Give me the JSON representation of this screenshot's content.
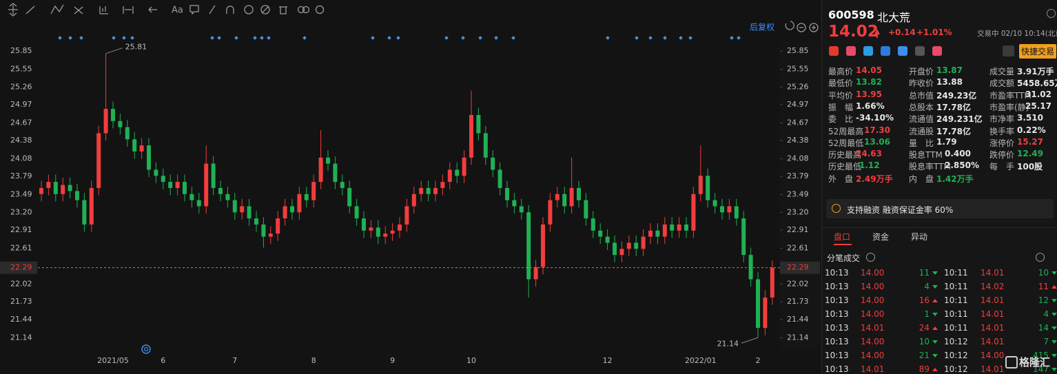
{
  "toolbar": {
    "font_tool": "Aa",
    "adjust": "后复权"
  },
  "chart_data": {
    "type": "candlestick",
    "categories": [
      null,
      null,
      null,
      null,
      null,
      null,
      null,
      null,
      null,
      null,
      "2021/05",
      null,
      null,
      null,
      null,
      null,
      null,
      "6",
      null,
      null,
      null,
      null,
      null,
      null,
      null,
      null,
      null,
      "7",
      null,
      null,
      null,
      null,
      null,
      null,
      null,
      null,
      null,
      null,
      "8",
      null,
      null,
      null,
      null,
      null,
      null,
      null,
      null,
      null,
      null,
      "9",
      null,
      null,
      null,
      null,
      null,
      null,
      null,
      null,
      null,
      null,
      "10",
      null,
      null,
      null,
      null,
      null,
      null,
      null,
      null,
      null,
      null,
      null,
      null,
      null,
      null,
      null,
      null,
      null,
      null,
      "12",
      null,
      null,
      null,
      null,
      null,
      null,
      null,
      null,
      null,
      null,
      null,
      null,
      "2022/01",
      null,
      null,
      null,
      null,
      null,
      null,
      null,
      "2",
      null,
      null
    ],
    "open": [
      23.5,
      23.6,
      23.7,
      23.5,
      23.65,
      23.55,
      23.4,
      23,
      23.6,
      24.5,
      24.9,
      24.7,
      24.6,
      24.4,
      24.2,
      24.3,
      23.9,
      23.8,
      23.7,
      23.6,
      23.7,
      23.5,
      23.4,
      23.3,
      24,
      23.6,
      23.5,
      23.4,
      23.2,
      23.3,
      23.1,
      23,
      22.8,
      22.85,
      23.1,
      23.3,
      23.2,
      23.5,
      23.4,
      23.7,
      24.1,
      24,
      23.7,
      23.6,
      23.3,
      23.1,
      22.9,
      22.95,
      22.8,
      22.85,
      22.9,
      23,
      23.3,
      23.5,
      23.6,
      23.5,
      23.6,
      23.7,
      23.9,
      23.8,
      24.1,
      24.8,
      24.5,
      24.1,
      23.9,
      23.6,
      23.4,
      23.3,
      23.2,
      22.1,
      22.3,
      23,
      23.4,
      23.5,
      23.3,
      23.6,
      23.4,
      23.1,
      22.9,
      22.8,
      22.7,
      22.5,
      22.6,
      22.7,
      22.6,
      22.8,
      22.9,
      22.8,
      23,
      22.9,
      23,
      22.9,
      23.5,
      23.8,
      23.4,
      23.3,
      23.2,
      23.3,
      23.1,
      22.5,
      22.1,
      21.3,
      21.8
    ],
    "high": [
      23.72,
      23.82,
      23.82,
      23.77,
      23.77,
      23.67,
      23.52,
      23.72,
      24.62,
      25.81,
      25.02,
      24.82,
      24.72,
      24.52,
      24.42,
      24.42,
      24.02,
      23.92,
      23.82,
      23.82,
      23.82,
      23.62,
      23.52,
      24.3,
      24.12,
      23.72,
      23.62,
      23.52,
      23.42,
      23.42,
      23.22,
      23.12,
      22.97,
      23.22,
      23.42,
      23.42,
      23.62,
      23.62,
      23.82,
      24.55,
      24.22,
      24.12,
      23.82,
      23.72,
      23.42,
      23.22,
      23.07,
      23.07,
      22.97,
      23.02,
      23.12,
      23.42,
      23.62,
      23.72,
      23.72,
      23.72,
      23.82,
      24.02,
      24.02,
      24.22,
      25.2,
      24.92,
      24.62,
      24.22,
      24.02,
      23.72,
      23.52,
      23.42,
      23.32,
      22.42,
      23.12,
      23.52,
      23.62,
      23.62,
      24.1,
      23.72,
      23.52,
      23.22,
      23.02,
      22.92,
      22.82,
      22.72,
      22.82,
      22.82,
      22.92,
      23.02,
      23.02,
      23.12,
      23.12,
      23.12,
      23.12,
      23.62,
      24.3,
      23.92,
      23.52,
      23.42,
      23.42,
      23.42,
      23.22,
      22.62,
      22.22,
      21.92,
      22.41
    ],
    "low": [
      23.38,
      23.48,
      23.38,
      23.38,
      23.43,
      23.28,
      22.88,
      22.88,
      23.48,
      24.38,
      24.58,
      24.48,
      24.28,
      24.08,
      24.08,
      23.78,
      23.68,
      23.58,
      23.48,
      23.48,
      23.38,
      23.28,
      23.18,
      23.18,
      23.48,
      23.38,
      23.28,
      23.08,
      23.08,
      22.98,
      22.88,
      22.62,
      22.68,
      22.73,
      22.98,
      23.08,
      23.08,
      23.28,
      23.28,
      23.58,
      23.88,
      23.58,
      23.48,
      23.18,
      22.98,
      22.78,
      22.78,
      22.68,
      22.68,
      22.73,
      22.78,
      22.88,
      23.18,
      23.38,
      23.38,
      23.38,
      23.48,
      23.58,
      23.68,
      23.68,
      23.98,
      24.38,
      23.98,
      23.78,
      23.48,
      23.28,
      23.18,
      23.08,
      21.8,
      21.98,
      22.18,
      22.88,
      23.28,
      23.18,
      23.18,
      23.28,
      22.98,
      22.78,
      22.68,
      22.58,
      22.38,
      22.38,
      22.48,
      22.48,
      22.48,
      22.68,
      22.68,
      22.68,
      22.78,
      22.78,
      22.78,
      22.78,
      23.38,
      23.28,
      23.18,
      23.08,
      23.08,
      22.98,
      22.38,
      21.98,
      21.14,
      21.18,
      21.68
    ],
    "close": [
      23.6,
      23.7,
      23.5,
      23.65,
      23.55,
      23.4,
      23,
      23.6,
      24.5,
      24.9,
      24.7,
      24.6,
      24.4,
      24.2,
      24.3,
      23.9,
      23.8,
      23.7,
      23.6,
      23.7,
      23.5,
      23.4,
      23.3,
      24,
      23.6,
      23.5,
      23.4,
      23.2,
      23.3,
      23.1,
      23,
      22.8,
      22.85,
      23.1,
      23.3,
      23.2,
      23.5,
      23.4,
      23.7,
      24.1,
      24,
      23.7,
      23.6,
      23.3,
      23.1,
      22.9,
      22.95,
      22.8,
      22.85,
      22.9,
      23,
      23.3,
      23.5,
      23.6,
      23.5,
      23.6,
      23.7,
      23.9,
      23.8,
      24.1,
      24.8,
      24.5,
      24.1,
      23.9,
      23.6,
      23.4,
      23.3,
      23.2,
      22.1,
      22.3,
      23,
      23.4,
      23.5,
      23.3,
      23.6,
      23.4,
      23.1,
      22.9,
      22.8,
      22.7,
      22.5,
      22.6,
      22.7,
      22.6,
      22.8,
      22.9,
      22.8,
      23,
      22.9,
      23,
      22.9,
      23.5,
      23.8,
      23.4,
      23.3,
      23.2,
      23.3,
      23.1,
      22.5,
      22.1,
      21.3,
      21.8,
      22.29
    ],
    "up_color": "#f23d3d",
    "down_color": "#1fb155",
    "ylim": [
      20.86,
      26.18
    ],
    "yticks": [
      25.85,
      25.55,
      25.26,
      24.97,
      24.67,
      24.38,
      24.08,
      23.79,
      23.49,
      {
        "value": 23.2,
        "label": "23.20"
      },
      22.91,
      22.61,
      22.02,
      21.73,
      21.44,
      21.14
    ],
    "grid": false
  },
  "quote": {
    "code": "600598",
    "name": "北大荒",
    "price": "14.02",
    "change": "+0.14",
    "percent": "+1.01%",
    "status": "交易中 02/10 10:14(北京",
    "trade_button": "快捷交易"
  },
  "stats": [
    [
      {
        "label": "最高价",
        "value": "14.05",
        "color": "#f23d3d"
      },
      {
        "label": "开盘价",
        "value": "13.87",
        "color": "#1fb155"
      },
      {
        "label": "成交量",
        "value": "3.91万手",
        "color": "#e6e6e6"
      }
    ],
    [
      {
        "label": "最低价",
        "value": "13.82",
        "color": "#1fb155"
      },
      {
        "label": "昨收价",
        "value": "13.88",
        "color": "#e6e6e6"
      },
      {
        "label": "成交额",
        "value": "5458.65万",
        "color": "#e6e6e6"
      }
    ],
    [
      {
        "label": "平均价",
        "value": "13.95",
        "color": "#f23d3d"
      },
      {
        "label": "总市值",
        "value": "249.23亿",
        "color": "#e6e6e6"
      },
      {
        "label": "市盈率TTM",
        "value": "31.02",
        "color": "#e6e6e6"
      }
    ],
    [
      {
        "label": "振　幅",
        "value": "1.66%",
        "color": "#e6e6e6"
      },
      {
        "label": "总股本",
        "value": "17.78亿",
        "color": "#e6e6e6"
      },
      {
        "label": "市盈率(静)",
        "value": "25.17",
        "color": "#e6e6e6"
      }
    ],
    [
      {
        "label": "委　比",
        "value": "-34.10%",
        "color": "#e6e6e6"
      },
      {
        "label": "流通值",
        "value": "249.231亿",
        "color": "#e6e6e6"
      },
      {
        "label": "市净率",
        "value": "3.510",
        "color": "#e6e6e6"
      }
    ],
    [
      {
        "label": "52周最高",
        "value": "17.30",
        "color": "#f23d3d"
      },
      {
        "label": "流通股",
        "value": "17.78亿",
        "color": "#e6e6e6"
      },
      {
        "label": "换手率",
        "value": "0.22%",
        "color": "#e6e6e6"
      }
    ],
    [
      {
        "label": "52周最低",
        "value": "13.06",
        "color": "#1fb155"
      },
      {
        "label": "量　比",
        "value": "1.79",
        "color": "#e6e6e6"
      },
      {
        "label": "涨停价",
        "value": "15.27",
        "color": "#f23d3d"
      }
    ],
    [
      {
        "label": "历史最高",
        "value": "24.63",
        "color": "#f23d3d"
      },
      {
        "label": "股息TTM",
        "value": "0.400",
        "color": "#e6e6e6"
      },
      {
        "label": "跌停价",
        "value": "12.49",
        "color": "#1fb155"
      }
    ],
    [
      {
        "label": "历史最低",
        "value": "-1.12",
        "color": "#1fb155"
      },
      {
        "label": "股息率TTM",
        "value": "2.850%",
        "color": "#e6e6e6"
      },
      {
        "label": "每　手",
        "value": "100股",
        "color": "#e6e6e6"
      }
    ],
    [
      {
        "label": "外　盘",
        "value": "2.49万手",
        "color": "#f23d3d"
      },
      {
        "label": "内　盘",
        "value": "1.42万手",
        "color": "#1fb155"
      }
    ]
  ],
  "margin_note": "支持融资 融资保证金率 60%",
  "tabs": [
    "盘口",
    "资金",
    "异动"
  ],
  "trades_title": "分笔成交",
  "trades": [
    [
      {
        "time": "10:13",
        "price": "14.00",
        "volume": "11",
        "side": "sell"
      },
      {
        "time": "10:11",
        "price": "14.01",
        "volume": "10",
        "side": "sell"
      }
    ],
    [
      {
        "time": "10:13",
        "price": "14.00",
        "volume": "4",
        "side": "sell"
      },
      {
        "time": "10:11",
        "price": "14.02",
        "volume": "11",
        "side": "buy"
      }
    ],
    [
      {
        "time": "10:13",
        "price": "14.00",
        "volume": "16",
        "side": "buy"
      },
      {
        "time": "10:11",
        "price": "14.01",
        "volume": "12",
        "side": "sell"
      }
    ],
    [
      {
        "time": "10:13",
        "price": "14.00",
        "volume": "1",
        "side": "sell"
      },
      {
        "time": "10:11",
        "price": "14.01",
        "volume": "4",
        "side": "sell"
      }
    ],
    [
      {
        "time": "10:13",
        "price": "14.01",
        "volume": "24",
        "side": "buy"
      },
      {
        "time": "10:11",
        "price": "14.01",
        "volume": "14",
        "side": "sell"
      }
    ],
    [
      {
        "time": "10:13",
        "price": "14.00",
        "volume": "10",
        "side": "sell"
      },
      {
        "time": "10:12",
        "price": "14.01",
        "volume": "7",
        "side": "sell"
      }
    ],
    [
      {
        "time": "10:13",
        "price": "14.00",
        "volume": "21",
        "side": "sell"
      },
      {
        "time": "10:12",
        "price": "14.00",
        "volume": "415",
        "side": "sell"
      }
    ],
    [
      {
        "time": "10:13",
        "price": "14.01",
        "volume": "89",
        "side": "buy"
      },
      {
        "time": "10:12",
        "price": "14.01",
        "volume": "147",
        "side": "sell"
      }
    ]
  ],
  "watermark": "格隆汇"
}
